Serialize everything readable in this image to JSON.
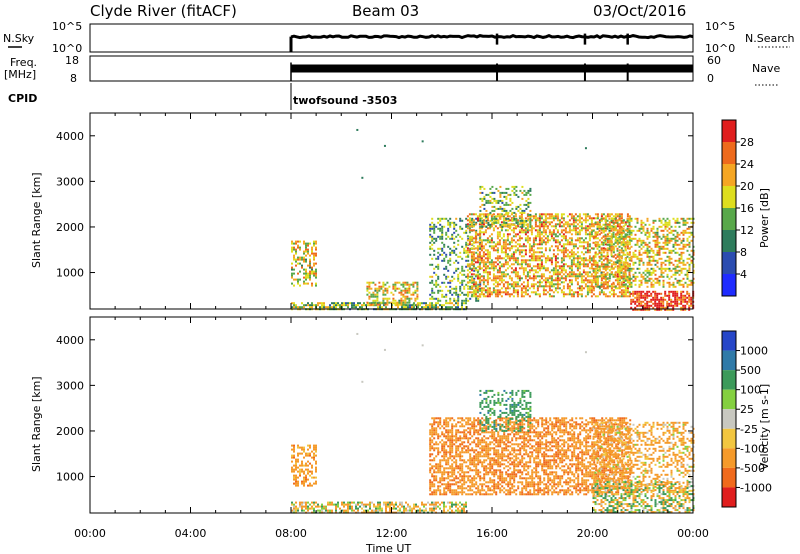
{
  "header": {
    "radar": "Clyde River (fitACF)",
    "beam": "Beam 03",
    "date": "03/Oct/2016"
  },
  "params": {
    "nsky_label": "N.Sky",
    "nsky_ticks": [
      "10^5",
      "10^0"
    ],
    "nsearch_label": "N.Search",
    "nsearch_ticks": [
      "10^5",
      "10^0"
    ],
    "freq_label_line1": "Freq.",
    "freq_label_line2": "[MHz]",
    "freq_ticks": [
      "18",
      "8"
    ],
    "nave_label": "Nave",
    "nave_ticks": [
      "60",
      "0"
    ],
    "cpid_label": "CPID",
    "cpid_value": "twofsound -3503"
  },
  "axes": {
    "ylabel": "Slant Range [km]",
    "yticks": [
      "1000",
      "2000",
      "3000",
      "4000"
    ],
    "xlabel": "Time UT",
    "xticks": [
      "00:00",
      "04:00",
      "08:00",
      "12:00",
      "16:00",
      "20:00",
      "00:00"
    ]
  },
  "colorbars": {
    "power": {
      "label": "Power [dB]",
      "ticks": [
        "4",
        "8",
        "12",
        "16",
        "20",
        "24",
        "28"
      ],
      "colors": [
        "#1f2cff",
        "#2b4cb0",
        "#2e7c5c",
        "#58a84a",
        "#dede1e",
        "#f5a623",
        "#ee6a1c",
        "#e01e1e"
      ]
    },
    "velocity": {
      "label": "Velocity [m s-1]",
      "ticks": [
        "1000",
        "500",
        "100",
        "25",
        "-25",
        "-100",
        "-500",
        "-1000"
      ],
      "colors": [
        "#2646c8",
        "#2f7aa8",
        "#3c9a5a",
        "#84d040",
        "#c8c8c0",
        "#f2c640",
        "#f59a2a",
        "#f06a1c",
        "#e01e1e"
      ]
    }
  },
  "chart_data": {
    "type": "heatmap",
    "title": "Clyde River (fitACF)  Beam 03  03/Oct/2016",
    "xlabel": "Time UT",
    "ylabel": "Slant Range [km]",
    "xlim_hours": [
      0,
      24
    ],
    "ylim_km": [
      200,
      4500
    ],
    "panels": [
      {
        "name": "Power [dB]",
        "scale": [
          0,
          30
        ],
        "regions": [
          {
            "t": [
              8.0,
              9.0
            ],
            "r": [
              700,
              1700
            ],
            "value": 18,
            "density": 0.45
          },
          {
            "t": [
              8.0,
              15.0
            ],
            "r": [
              200,
              350
            ],
            "value": 14,
            "density": 0.7
          },
          {
            "t": [
              11.0,
              13.0
            ],
            "r": [
              300,
              800
            ],
            "value": 18,
            "density": 0.5
          },
          {
            "t": [
              13.5,
              15.5
            ],
            "r": [
              400,
              2200
            ],
            "value": 12,
            "density": 0.35
          },
          {
            "t": [
              15.0,
              21.5
            ],
            "r": [
              500,
              2300
            ],
            "value": 20,
            "density": 0.55
          },
          {
            "t": [
              15.5,
              17.5
            ],
            "r": [
              2000,
              2900
            ],
            "value": 14,
            "density": 0.35
          },
          {
            "t": [
              20.0,
              24.0
            ],
            "r": [
              700,
              2200
            ],
            "value": 18,
            "density": 0.45
          },
          {
            "t": [
              21.5,
              24.0
            ],
            "r": [
              200,
              600
            ],
            "value": 27,
            "density": 0.7
          }
        ]
      },
      {
        "name": "Velocity [m s-1]",
        "scale": [
          -1000,
          1000
        ],
        "regions": [
          {
            "t": [
              8.0,
              9.0
            ],
            "r": [
              800,
              1700
            ],
            "value": -300,
            "density": 0.5
          },
          {
            "t": [
              8.0,
              15.0
            ],
            "r": [
              200,
              450
            ],
            "value": -80,
            "density": 0.6
          },
          {
            "t": [
              13.5,
              21.5
            ],
            "r": [
              600,
              2300
            ],
            "value": -400,
            "density": 0.6
          },
          {
            "t": [
              15.5,
              17.5
            ],
            "r": [
              2000,
              2900
            ],
            "value": 300,
            "density": 0.35
          },
          {
            "t": [
              20.0,
              24.0
            ],
            "r": [
              700,
              2200
            ],
            "value": -200,
            "density": 0.4
          },
          {
            "t": [
              20.0,
              24.0
            ],
            "r": [
              200,
              900
            ],
            "value": 0,
            "density": 0.55
          }
        ]
      }
    ],
    "nsky": {
      "start_hour": 8.0,
      "level": 0.55
    },
    "freq_nave": {
      "start_hour": 8.0,
      "level": 0.5
    },
    "data_gaps_hours": [
      16.2,
      19.7,
      21.4
    ]
  }
}
